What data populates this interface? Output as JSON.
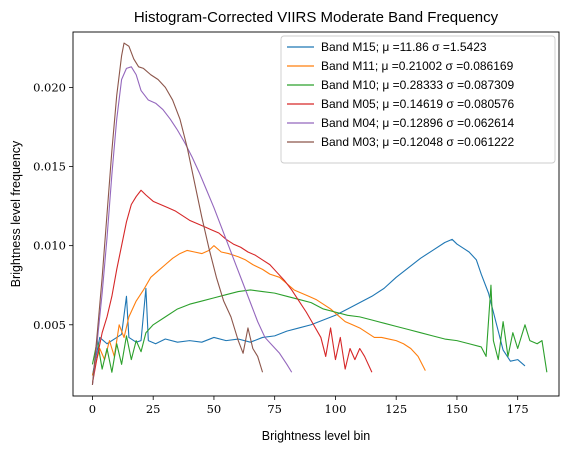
{
  "chart_data": {
    "type": "line",
    "title": "Histogram-Corrected VIIRS Moderate Band Frequency",
    "xlabel": "Brightness level bin",
    "ylabel": "Brightness level frequency",
    "xlim": [
      -8,
      192
    ],
    "ylim": [
      0.0005,
      0.0235
    ],
    "xticks": [
      0,
      25,
      50,
      75,
      100,
      125,
      150,
      175
    ],
    "yticks": [
      0.005,
      0.01,
      0.015,
      0.02
    ],
    "xtick_labels": [
      "0",
      "25",
      "50",
      "75",
      "100",
      "125",
      "150",
      "175"
    ],
    "ytick_labels": [
      "0.005",
      "0.010",
      "0.015",
      "0.020"
    ],
    "grid": false,
    "legend_position": "top-right",
    "series": [
      {
        "name": "Band M15; μ =11.86 σ =1.5423",
        "color": "#1f77b4",
        "points": [
          [
            0,
            0.0018
          ],
          [
            3,
            0.0042
          ],
          [
            6,
            0.0038
          ],
          [
            9,
            0.0041
          ],
          [
            12,
            0.0044
          ],
          [
            14,
            0.0068
          ],
          [
            15,
            0.0042
          ],
          [
            18,
            0.0039
          ],
          [
            20,
            0.004
          ],
          [
            22,
            0.0073
          ],
          [
            23,
            0.004
          ],
          [
            26,
            0.0038
          ],
          [
            30,
            0.0041
          ],
          [
            35,
            0.0039
          ],
          [
            40,
            0.004
          ],
          [
            45,
            0.0039
          ],
          [
            50,
            0.0042
          ],
          [
            55,
            0.004
          ],
          [
            60,
            0.0041
          ],
          [
            65,
            0.0039
          ],
          [
            70,
            0.0042
          ],
          [
            75,
            0.0043
          ],
          [
            80,
            0.0046
          ],
          [
            85,
            0.0048
          ],
          [
            90,
            0.005
          ],
          [
            95,
            0.0053
          ],
          [
            100,
            0.0056
          ],
          [
            105,
            0.006
          ],
          [
            110,
            0.0064
          ],
          [
            115,
            0.0068
          ],
          [
            120,
            0.0073
          ],
          [
            125,
            0.008
          ],
          [
            130,
            0.0086
          ],
          [
            135,
            0.0092
          ],
          [
            140,
            0.0097
          ],
          [
            145,
            0.0102
          ],
          [
            148,
            0.0104
          ],
          [
            150,
            0.0101
          ],
          [
            153,
            0.0098
          ],
          [
            155,
            0.0096
          ],
          [
            158,
            0.0091
          ],
          [
            160,
            0.0082
          ],
          [
            163,
            0.007
          ],
          [
            165,
            0.0058
          ],
          [
            167,
            0.0046
          ],
          [
            169,
            0.0034
          ],
          [
            172,
            0.0027
          ],
          [
            175,
            0.0028
          ],
          [
            178,
            0.0024
          ]
        ]
      },
      {
        "name": "Band M11; μ =0.21002 σ =0.086169",
        "color": "#ff7f0e",
        "points": [
          [
            0,
            0.0018
          ],
          [
            3,
            0.0035
          ],
          [
            5,
            0.0028
          ],
          [
            7,
            0.004
          ],
          [
            9,
            0.003
          ],
          [
            11,
            0.005
          ],
          [
            13,
            0.0042
          ],
          [
            15,
            0.0055
          ],
          [
            18,
            0.0065
          ],
          [
            21,
            0.0072
          ],
          [
            24,
            0.008
          ],
          [
            27,
            0.0084
          ],
          [
            30,
            0.0088
          ],
          [
            33,
            0.0092
          ],
          [
            36,
            0.0095
          ],
          [
            39,
            0.0097
          ],
          [
            42,
            0.0096
          ],
          [
            45,
            0.0095
          ],
          [
            48,
            0.0097
          ],
          [
            50,
            0.01
          ],
          [
            53,
            0.0096
          ],
          [
            56,
            0.0095
          ],
          [
            60,
            0.0093
          ],
          [
            63,
            0.0091
          ],
          [
            66,
            0.0088
          ],
          [
            70,
            0.0085
          ],
          [
            73,
            0.0082
          ],
          [
            77,
            0.008
          ],
          [
            80,
            0.0076
          ],
          [
            83,
            0.0072
          ],
          [
            86,
            0.007
          ],
          [
            89,
            0.0068
          ],
          [
            92,
            0.0066
          ],
          [
            95,
            0.0063
          ],
          [
            98,
            0.006
          ],
          [
            101,
            0.0056
          ],
          [
            104,
            0.0052
          ],
          [
            107,
            0.005
          ],
          [
            110,
            0.0048
          ],
          [
            113,
            0.0045
          ],
          [
            116,
            0.0042
          ],
          [
            119,
            0.0042
          ],
          [
            122,
            0.0041
          ],
          [
            125,
            0.004
          ],
          [
            128,
            0.0038
          ],
          [
            131,
            0.0035
          ],
          [
            134,
            0.003
          ],
          [
            137,
            0.0021
          ]
        ]
      },
      {
        "name": "Band M10; μ =0.28333 σ =0.087309",
        "color": "#2ca02c",
        "points": [
          [
            0,
            0.0025
          ],
          [
            2,
            0.004
          ],
          [
            4,
            0.0022
          ],
          [
            6,
            0.0035
          ],
          [
            8,
            0.002
          ],
          [
            10,
            0.0038
          ],
          [
            12,
            0.0025
          ],
          [
            14,
            0.0043
          ],
          [
            16,
            0.0028
          ],
          [
            18,
            0.004
          ],
          [
            20,
            0.0033
          ],
          [
            22,
            0.0045
          ],
          [
            25,
            0.005
          ],
          [
            30,
            0.0055
          ],
          [
            35,
            0.006
          ],
          [
            40,
            0.0063
          ],
          [
            45,
            0.0065
          ],
          [
            50,
            0.0067
          ],
          [
            55,
            0.0069
          ],
          [
            60,
            0.0071
          ],
          [
            65,
            0.0072
          ],
          [
            70,
            0.0071
          ],
          [
            75,
            0.007
          ],
          [
            80,
            0.0068
          ],
          [
            85,
            0.0066
          ],
          [
            90,
            0.0064
          ],
          [
            95,
            0.006
          ],
          [
            100,
            0.0058
          ],
          [
            105,
            0.0056
          ],
          [
            110,
            0.0055
          ],
          [
            115,
            0.0053
          ],
          [
            120,
            0.0051
          ],
          [
            125,
            0.0049
          ],
          [
            130,
            0.0047
          ],
          [
            135,
            0.0045
          ],
          [
            140,
            0.0043
          ],
          [
            145,
            0.0041
          ],
          [
            150,
            0.004
          ],
          [
            155,
            0.0038
          ],
          [
            160,
            0.0036
          ],
          [
            162,
            0.003
          ],
          [
            164,
            0.0075
          ],
          [
            165,
            0.004
          ],
          [
            167,
            0.0028
          ],
          [
            169,
            0.0052
          ],
          [
            171,
            0.003
          ],
          [
            173,
            0.0045
          ],
          [
            175,
            0.0035
          ],
          [
            178,
            0.005
          ],
          [
            180,
            0.004
          ],
          [
            183,
            0.0038
          ],
          [
            185,
            0.004
          ],
          [
            187,
            0.002
          ]
        ]
      },
      {
        "name": "Band M05; μ =0.14619 σ =0.080576",
        "color": "#d62728",
        "points": [
          [
            0,
            0.0013
          ],
          [
            2,
            0.003
          ],
          [
            4,
            0.0045
          ],
          [
            6,
            0.0055
          ],
          [
            8,
            0.0068
          ],
          [
            10,
            0.0085
          ],
          [
            12,
            0.01
          ],
          [
            14,
            0.0115
          ],
          [
            16,
            0.0126
          ],
          [
            18,
            0.0131
          ],
          [
            20,
            0.0135
          ],
          [
            22,
            0.0132
          ],
          [
            25,
            0.0128
          ],
          [
            28,
            0.0126
          ],
          [
            31,
            0.0124
          ],
          [
            34,
            0.0122
          ],
          [
            37,
            0.0119
          ],
          [
            40,
            0.0116
          ],
          [
            43,
            0.0114
          ],
          [
            46,
            0.0112
          ],
          [
            49,
            0.011
          ],
          [
            52,
            0.0108
          ],
          [
            55,
            0.0104
          ],
          [
            58,
            0.0101
          ],
          [
            61,
            0.0099
          ],
          [
            64,
            0.0096
          ],
          [
            67,
            0.0094
          ],
          [
            70,
            0.0091
          ],
          [
            73,
            0.0088
          ],
          [
            76,
            0.0083
          ],
          [
            79,
            0.0078
          ],
          [
            82,
            0.0072
          ],
          [
            85,
            0.0065
          ],
          [
            88,
            0.0058
          ],
          [
            91,
            0.005
          ],
          [
            94,
            0.0042
          ],
          [
            96,
            0.003
          ],
          [
            98,
            0.0048
          ],
          [
            100,
            0.0028
          ],
          [
            102,
            0.0042
          ],
          [
            104,
            0.0022
          ],
          [
            106,
            0.0035
          ],
          [
            108,
            0.0028
          ],
          [
            110,
            0.0035
          ],
          [
            112,
            0.003
          ],
          [
            115,
            0.002
          ]
        ]
      },
      {
        "name": "Band M04; μ =0.12896 σ =0.062614",
        "color": "#9467bd",
        "points": [
          [
            0,
            0.0012
          ],
          [
            2,
            0.004
          ],
          [
            4,
            0.007
          ],
          [
            6,
            0.0105
          ],
          [
            8,
            0.0145
          ],
          [
            10,
            0.018
          ],
          [
            12,
            0.0205
          ],
          [
            14,
            0.0212
          ],
          [
            16,
            0.0213
          ],
          [
            18,
            0.0208
          ],
          [
            20,
            0.0198
          ],
          [
            23,
            0.0192
          ],
          [
            26,
            0.019
          ],
          [
            29,
            0.0186
          ],
          [
            32,
            0.018
          ],
          [
            35,
            0.0173
          ],
          [
            38,
            0.0165
          ],
          [
            41,
            0.0156
          ],
          [
            44,
            0.0146
          ],
          [
            47,
            0.0135
          ],
          [
            50,
            0.0124
          ],
          [
            53,
            0.0112
          ],
          [
            56,
            0.01
          ],
          [
            59,
            0.0088
          ],
          [
            62,
            0.0076
          ],
          [
            65,
            0.0064
          ],
          [
            68,
            0.0052
          ],
          [
            71,
            0.0042
          ],
          [
            74,
            0.0037
          ],
          [
            77,
            0.0032
          ],
          [
            80,
            0.0025
          ],
          [
            82,
            0.002
          ]
        ]
      },
      {
        "name": "Band M03; μ =0.12048 σ =0.061222",
        "color": "#8c564b",
        "points": [
          [
            0,
            0.0012
          ],
          [
            2,
            0.0045
          ],
          [
            4,
            0.008
          ],
          [
            6,
            0.012
          ],
          [
            8,
            0.016
          ],
          [
            10,
            0.0195
          ],
          [
            12,
            0.022
          ],
          [
            13,
            0.0228
          ],
          [
            15,
            0.0226
          ],
          [
            17,
            0.0218
          ],
          [
            19,
            0.0213
          ],
          [
            21,
            0.0212
          ],
          [
            24,
            0.0208
          ],
          [
            27,
            0.0205
          ],
          [
            30,
            0.02
          ],
          [
            33,
            0.0192
          ],
          [
            36,
            0.018
          ],
          [
            39,
            0.0162
          ],
          [
            42,
            0.014
          ],
          [
            45,
            0.0118
          ],
          [
            48,
            0.0098
          ],
          [
            51,
            0.008
          ],
          [
            54,
            0.0065
          ],
          [
            57,
            0.0055
          ],
          [
            60,
            0.004
          ],
          [
            62,
            0.0032
          ],
          [
            64,
            0.0048
          ],
          [
            66,
            0.0035
          ],
          [
            68,
            0.003
          ],
          [
            70,
            0.002
          ]
        ]
      }
    ]
  }
}
